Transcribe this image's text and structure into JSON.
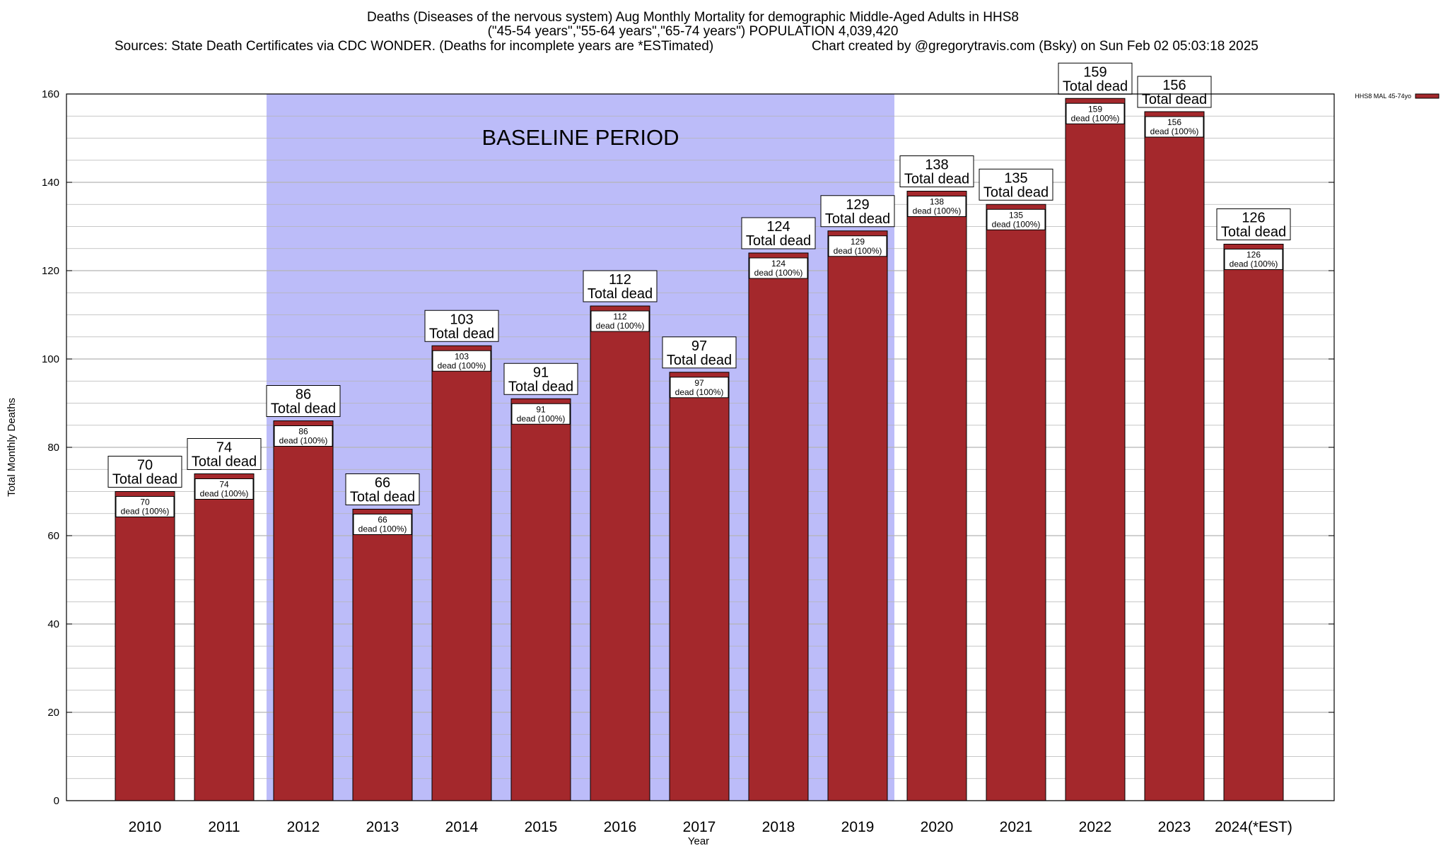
{
  "titles": [
    "Deaths (Diseases of the nervous system) Aug Monthly Mortality for demographic Middle-Aged Adults in HHS8",
    "(\"45-54 years\",\"55-64 years\",\"65-74 years\") POPULATION 4,039,420",
    "Sources: State Death Certificates via CDC WONDER. (Deaths for incomplete years are *ESTimated)",
    "Chart created by @gregorytravis.com (Bsky) on Sun Feb 02 05:03:18 2025"
  ],
  "colors": {
    "bar": "#a4282c",
    "baseline_band": "#bcbcf9",
    "grid": "#b4b4b4"
  },
  "chart_data": {
    "type": "bar",
    "title": "Deaths (Diseases of the nervous system) Aug Monthly Mortality for demographic Middle-Aged Adults in HHS8",
    "xlabel": "Year",
    "ylabel": "Total Monthly Deaths",
    "ylim": [
      0,
      160
    ],
    "yticks": [
      0,
      20,
      40,
      60,
      80,
      100,
      120,
      140,
      160
    ],
    "grid": true,
    "legend_position": "top-right",
    "categories": [
      "2010",
      "2011",
      "2012",
      "2013",
      "2014",
      "2015",
      "2016",
      "2017",
      "2018",
      "2019",
      "2020",
      "2021",
      "2022",
      "2023",
      "2024(*EST)"
    ],
    "series": [
      {
        "name": "HHS8 MAL 45-74yo",
        "values": [
          70,
          74,
          86,
          66,
          103,
          91,
          112,
          97,
          124,
          129,
          138,
          135,
          159,
          156,
          126
        ]
      }
    ],
    "bar_label_text": "Total dead",
    "bar_inner_text": "dead (100%)",
    "annotation": {
      "text": "BASELINE PERIOD",
      "from_category": "2012",
      "to_category": "2019"
    }
  }
}
